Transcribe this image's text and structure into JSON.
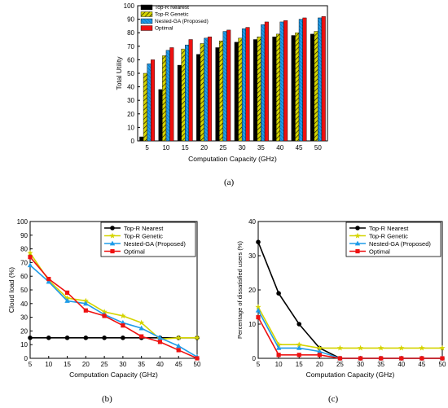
{
  "captions": [
    "(a)",
    "(b)",
    "(c)"
  ],
  "colors": {
    "top_r_nearest": "#000000",
    "top_r_genetic": "#d4d400",
    "nested_ga": "#1e9be8",
    "optimal": "#ee1111"
  },
  "chart_data": [
    {
      "type": "bar",
      "title": "",
      "xlabel": "Computation Capacity (GHz)",
      "ylabel": "Total Utility",
      "categories": [
        "5",
        "10",
        "15",
        "20",
        "25",
        "30",
        "35",
        "40",
        "45",
        "50"
      ],
      "ylim": [
        0,
        100
      ],
      "yticks": [
        "0",
        "10",
        "20",
        "30",
        "40",
        "50",
        "60",
        "70",
        "80",
        "90",
        "100"
      ],
      "grid": false,
      "legend_position": "top-left",
      "series": [
        {
          "name": "Top-R Nearest",
          "values": [
            3,
            38,
            56,
            64,
            69,
            73,
            75,
            77,
            78,
            79
          ]
        },
        {
          "name": "Top-R Genetic",
          "values": [
            50,
            63,
            68,
            72,
            74,
            76,
            77,
            79,
            80,
            81
          ]
        },
        {
          "name": "Nested-GA (Proposed)",
          "values": [
            57,
            67,
            71,
            76,
            81,
            83,
            86,
            88,
            90,
            91
          ]
        },
        {
          "name": "Optimal",
          "values": [
            60,
            69,
            75,
            77,
            82,
            84,
            88,
            89,
            91,
            92
          ]
        }
      ]
    },
    {
      "type": "line",
      "title": "",
      "xlabel": "Computation Capacity (GHz)",
      "ylabel": "Cloud load (%)",
      "x": [
        5,
        10,
        15,
        20,
        25,
        30,
        35,
        40,
        45,
        50
      ],
      "xticks": [
        "5",
        "10",
        "15",
        "20",
        "25",
        "30",
        "35",
        "40",
        "45",
        "50"
      ],
      "xlim": [
        5,
        50
      ],
      "ylim": [
        0,
        100
      ],
      "yticks": [
        "0",
        "10",
        "20",
        "30",
        "40",
        "50",
        "60",
        "70",
        "80",
        "90",
        "100"
      ],
      "grid": false,
      "legend_position": "top-right",
      "series": [
        {
          "name": "Top-R Nearest",
          "values": [
            15,
            15,
            15,
            15,
            15,
            15,
            15,
            15,
            15,
            15
          ]
        },
        {
          "name": "Top-R Genetic",
          "values": [
            77,
            57,
            44,
            42,
            34,
            31,
            26,
            14,
            15,
            15
          ]
        },
        {
          "name": "Nested-GA (Proposed)",
          "values": [
            68,
            56,
            42,
            40,
            32,
            26,
            22,
            15,
            9,
            1
          ]
        },
        {
          "name": "Optimal",
          "values": [
            74,
            58,
            48,
            35,
            31,
            24,
            16,
            12,
            6,
            0
          ]
        }
      ]
    },
    {
      "type": "line",
      "title": "",
      "xlabel": "Computation Capacity (GHz)",
      "ylabel": "Percentage of dissatisfied users (%)",
      "x": [
        5,
        10,
        15,
        20,
        25,
        30,
        35,
        40,
        45,
        50
      ],
      "xticks": [
        "5",
        "10",
        "15",
        "20",
        "25",
        "30",
        "35",
        "40",
        "45",
        "50"
      ],
      "xlim": [
        5,
        50
      ],
      "ylim": [
        0,
        40
      ],
      "yticks": [
        "0",
        "10",
        "20",
        "30",
        "40"
      ],
      "grid": false,
      "legend_position": "top-right",
      "series": [
        {
          "name": "Top-R Nearest",
          "values": [
            34,
            19,
            10,
            3,
            0,
            0,
            0,
            0,
            0,
            0
          ]
        },
        {
          "name": "Top-R Genetic",
          "values": [
            15,
            4,
            4,
            3,
            3,
            3,
            3,
            3,
            3,
            3
          ]
        },
        {
          "name": "Nested-GA (Proposed)",
          "values": [
            14,
            3,
            3,
            2,
            0,
            0,
            0,
            0,
            0,
            0
          ]
        },
        {
          "name": "Optimal",
          "values": [
            12,
            1,
            1,
            1,
            0,
            0,
            0,
            0,
            0,
            0
          ]
        }
      ]
    }
  ]
}
